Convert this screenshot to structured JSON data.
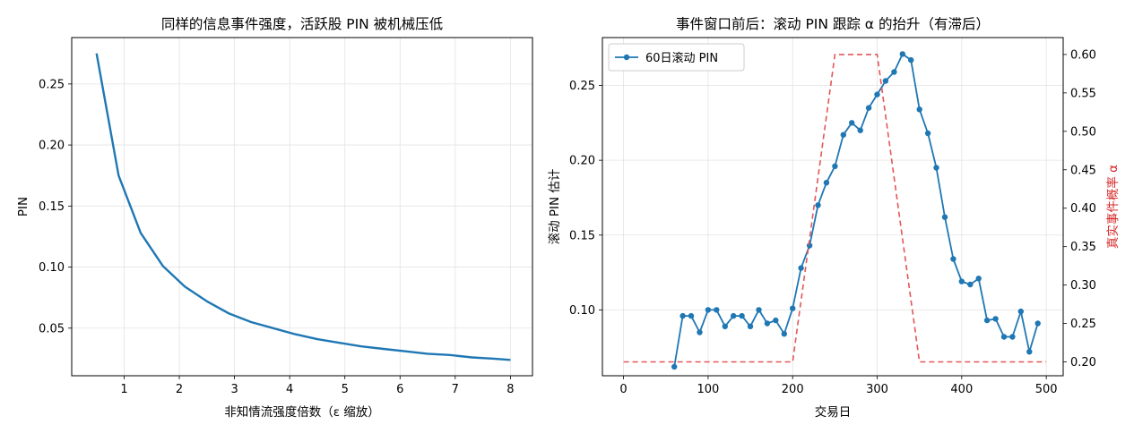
{
  "chart_data": [
    {
      "type": "line",
      "title": "同样的信息事件强度，活跃股 PIN 被机械压低",
      "xlabel": "非知情流强度倍数（ε 缩放）",
      "ylabel": "PIN",
      "xlim": [
        0.05,
        8.4
      ],
      "ylim": [
        0.011,
        0.288
      ],
      "xticks": [
        1,
        2,
        3,
        4,
        5,
        6,
        7,
        8
      ],
      "yticks": [
        0.05,
        0.1,
        0.15,
        0.2,
        0.25
      ],
      "ytick_labels": [
        "0.05",
        "0.10",
        "0.15",
        "0.20",
        "0.25"
      ],
      "grid": true,
      "series": [
        {
          "color": "#1f77b4",
          "x": [
            0.5,
            0.9,
            1.3,
            1.7,
            2.1,
            2.5,
            2.9,
            3.3,
            3.7,
            4.1,
            4.5,
            4.9,
            5.3,
            5.7,
            6.1,
            6.5,
            6.9,
            7.3,
            7.7,
            8.0
          ],
          "y": [
            0.275,
            0.175,
            0.128,
            0.101,
            0.084,
            0.072,
            0.062,
            0.055,
            0.05,
            0.045,
            0.041,
            0.038,
            0.035,
            0.033,
            0.031,
            0.029,
            0.028,
            0.026,
            0.025,
            0.024
          ]
        }
      ]
    },
    {
      "type": "line",
      "title": "事件窗口前后：滚动 PIN 跟踪 α 的抬升（有滞后）",
      "xlabel": "交易日",
      "ylabel": "滚动 PIN 估计",
      "ylabel_right": "真实事件概率 α",
      "xlim": [
        -25,
        520
      ],
      "ylim": [
        0.056,
        0.282
      ],
      "ylim_right": [
        0.182,
        0.622
      ],
      "xticks": [
        0,
        100,
        200,
        300,
        400,
        500
      ],
      "yticks": [
        0.1,
        0.15,
        0.2,
        0.25
      ],
      "ytick_labels": [
        "0.10",
        "0.15",
        "0.20",
        "0.25"
      ],
      "yticks_right": [
        0.2,
        0.25,
        0.3,
        0.35,
        0.4,
        0.45,
        0.5,
        0.55,
        0.6
      ],
      "ytick_labels_right": [
        "0.20",
        "0.25",
        "0.30",
        "0.35",
        "0.40",
        "0.45",
        "0.50",
        "0.55",
        "0.60"
      ],
      "grid": true,
      "legend": "top-left",
      "series": [
        {
          "name": "60日滚动 PIN",
          "color": "#1f77b4",
          "marker": "circle",
          "x": [
            60,
            70,
            80,
            90,
            100,
            110,
            120,
            130,
            140,
            150,
            160,
            170,
            180,
            190,
            200,
            210,
            220,
            230,
            240,
            250,
            260,
            270,
            280,
            290,
            300,
            310,
            320,
            330,
            340,
            350,
            360,
            370,
            380,
            390,
            400,
            410,
            420,
            430,
            440,
            450,
            460,
            470,
            480,
            490
          ],
          "y": [
            0.062,
            0.096,
            0.096,
            0.085,
            0.1,
            0.1,
            0.089,
            0.096,
            0.096,
            0.089,
            0.1,
            0.091,
            0.093,
            0.084,
            0.101,
            0.128,
            0.143,
            0.17,
            0.185,
            0.196,
            0.217,
            0.225,
            0.22,
            0.235,
            0.244,
            0.253,
            0.259,
            0.271,
            0.267,
            0.234,
            0.218,
            0.195,
            0.162,
            0.134,
            0.119,
            0.117,
            0.121,
            0.093,
            0.094,
            0.082,
            0.082,
            0.099,
            0.072,
            0.091
          ]
        },
        {
          "color": "#e15759",
          "dashed": true,
          "axis": "right",
          "x": [
            0,
            200,
            250,
            300,
            350,
            500
          ],
          "y": [
            0.2,
            0.2,
            0.6,
            0.6,
            0.2,
            0.2
          ]
        }
      ]
    }
  ]
}
